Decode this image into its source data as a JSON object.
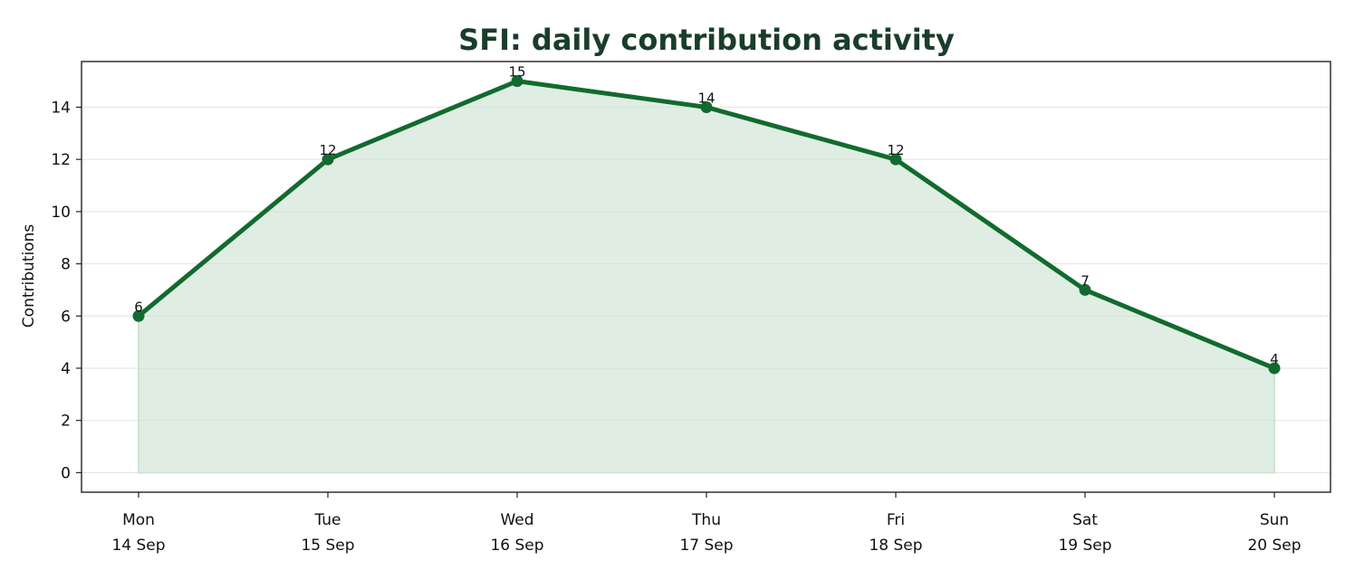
{
  "chart_data": {
    "type": "area",
    "title": "SFI: daily contribution activity",
    "xlabel": "",
    "ylabel": "Contributions",
    "categories": [
      [
        "Mon",
        "14 Sep"
      ],
      [
        "Tue",
        "15 Sep"
      ],
      [
        "Wed",
        "16 Sep"
      ],
      [
        "Thu",
        "17 Sep"
      ],
      [
        "Fri",
        "18 Sep"
      ],
      [
        "Sat",
        "19 Sep"
      ],
      [
        "Sun",
        "20 Sep"
      ]
    ],
    "values": [
      6,
      12,
      15,
      14,
      12,
      7,
      4
    ],
    "ylim": [
      -0.75,
      15.75
    ],
    "yticks": [
      0,
      2,
      4,
      6,
      8,
      10,
      12,
      14
    ],
    "grid": "y",
    "legend": "none",
    "colors": {
      "line": "#116b2e",
      "fill": "#cfe3d4",
      "title": "#1a3d2b",
      "grid": "#e6e6e6"
    }
  }
}
